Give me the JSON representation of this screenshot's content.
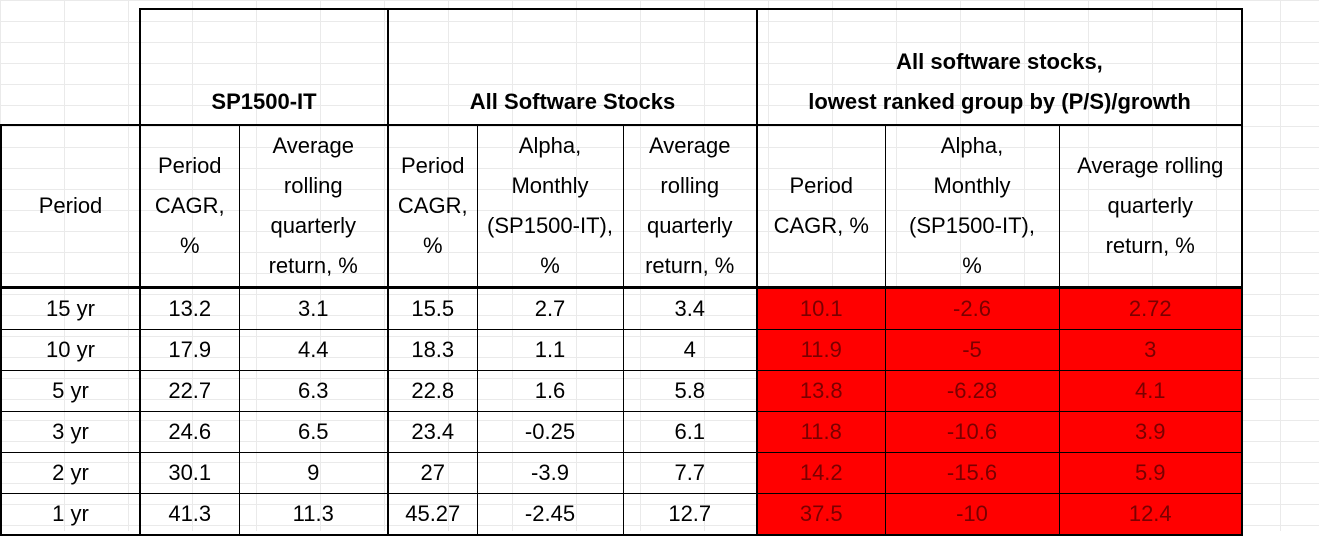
{
  "groups": {
    "sp1500": "SP1500-IT",
    "all_software": "All Software Stocks",
    "lowest_line1": "All software stocks,",
    "lowest_line2": "lowest ranked group by (P/S)/growth"
  },
  "subheaders": {
    "period": "Period",
    "sp_cagr": [
      "Period",
      "CAGR,",
      "%"
    ],
    "sp_avg": [
      "Average",
      "rolling",
      "quarterly",
      "return, %"
    ],
    "sw_cagr": [
      "Period",
      "CAGR,",
      "%"
    ],
    "sw_alpha": [
      "Alpha,",
      "Monthly",
      "(SP1500-IT),",
      "%"
    ],
    "sw_avg": [
      "Average",
      "rolling",
      "quarterly",
      "return, %"
    ],
    "lo_cagr": [
      "Period",
      "CAGR, %"
    ],
    "lo_alpha": [
      "Alpha,",
      "Monthly",
      "(SP1500-IT),",
      "%"
    ],
    "lo_avg": [
      "Average rolling",
      "quarterly",
      "return, %"
    ]
  },
  "rows": [
    [
      "15 yr",
      "13.2",
      "3.1",
      "15.5",
      "2.7",
      "3.4",
      "10.1",
      "-2.6",
      "2.72"
    ],
    [
      "10 yr",
      "17.9",
      "4.4",
      "18.3",
      "1.1",
      "4",
      "11.9",
      "-5",
      "3"
    ],
    [
      "5 yr",
      "22.7",
      "6.3",
      "22.8",
      "1.6",
      "5.8",
      "13.8",
      "-6.28",
      "4.1"
    ],
    [
      "3 yr",
      "24.6",
      "6.5",
      "23.4",
      "-0.25",
      "6.1",
      "11.8",
      "-10.6",
      "3.9"
    ],
    [
      "2 yr",
      "30.1",
      "9",
      "27",
      "-3.9",
      "7.7",
      "14.2",
      "-15.6",
      "5.9"
    ],
    [
      "1 yr",
      "41.3",
      "11.3",
      "45.27",
      "-2.45",
      "12.7",
      "37.5",
      "-10",
      "12.4"
    ]
  ],
  "colors": {
    "highlight": "#ff0000",
    "highlight_text": "#7a0000"
  }
}
